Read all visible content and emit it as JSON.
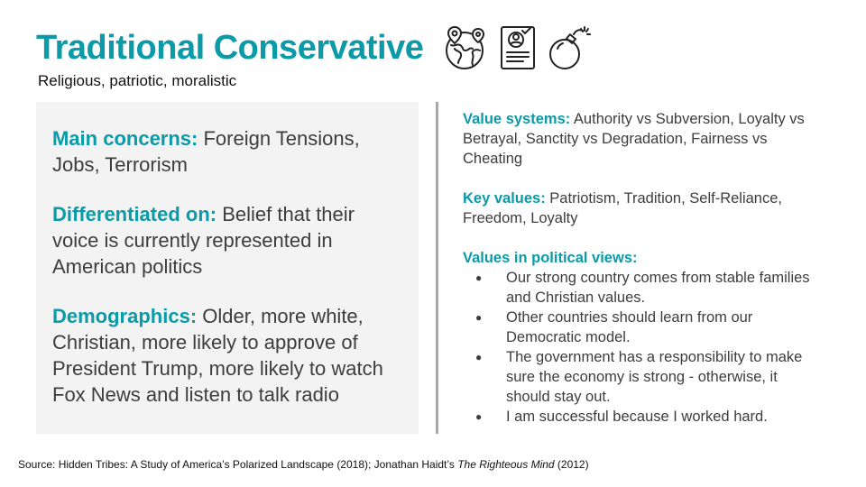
{
  "header": {
    "title": "Traditional Conservative",
    "subtitle": "Religious, patriotic, moralistic",
    "icons": [
      "globe-pins-icon",
      "id-document-icon",
      "bomb-icon"
    ]
  },
  "left_panel": {
    "concerns": {
      "label": "Main concerns:",
      "text": " Foreign Tensions, Jobs, Terrorism"
    },
    "differentiated": {
      "label": "Differentiated on:",
      "text": " Belief that their voice is currently represented in American politics"
    },
    "demographics": {
      "label": "Demographics:",
      "text": " Older, more white, Christian, more likely to approve of President Trump, more likely to watch Fox News and listen to talk radio"
    }
  },
  "right_panel": {
    "value_systems": {
      "label": "Value systems:",
      "text": " Authority vs Subversion, Loyalty vs Betrayal, Sanctity vs Degradation, Fairness vs Cheating"
    },
    "key_values": {
      "label": "Key values:",
      "text": " Patriotism, Tradition, Self-Reliance, Freedom, Loyalty"
    },
    "political_views": {
      "label": "Values in political views:",
      "items": [
        "Our strong country comes from stable families and Christian values.",
        "Other countries should learn from our Democratic model.",
        "The government has a responsibility to make sure the economy is strong - otherwise, it should stay out.",
        "I am successful because I worked hard."
      ]
    }
  },
  "source": {
    "prefix": "Source: Hidden Tribes: A Study of America’s Polarized Landscape (2018); Jonathan Haidt’s ",
    "book": "The Righteous Mind",
    "suffix": " (2012)"
  },
  "colors": {
    "accent": "#0a9aa8",
    "text": "#3d3d3d",
    "panel": "#f3f3f3",
    "divider": "#a8a8a8"
  }
}
